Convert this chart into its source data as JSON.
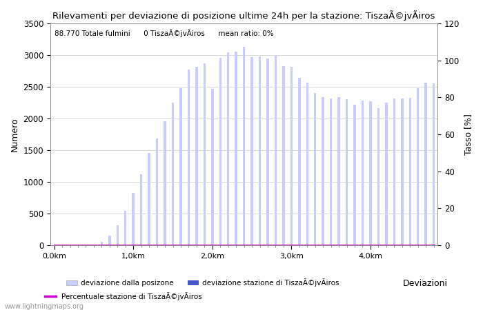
{
  "title": "Rilevamenti per deviazione di posizione ultime 24h per la stazione: TiszaÃ©jvÃiros",
  "xlabel": "Deviazioni",
  "ylabel_left": "Numero",
  "ylabel_right": "Tasso [%]",
  "info_text": "88.770 Totale fulmini      0 TiszaÃ©jvÃiros      mean ratio: 0%",
  "xtick_labels": [
    "0,0km",
    "1,0km",
    "2,0km",
    "3,0km",
    "4,0km"
  ],
  "xtick_positions": [
    0,
    10,
    20,
    30,
    40
  ],
  "ylim_left": [
    0,
    3500
  ],
  "ylim_right": [
    0,
    120
  ],
  "yticks_left": [
    0,
    500,
    1000,
    1500,
    2000,
    2500,
    3000,
    3500
  ],
  "yticks_right": [
    0,
    20,
    40,
    60,
    80,
    100,
    120
  ],
  "bar_color_light": "#c8ccff",
  "bar_color_dark": "#4455cc",
  "line_color": "#cc00cc",
  "background_color": "#ffffff",
  "grid_color": "#cccccc",
  "watermark": "www.lightningmaps.org",
  "legend_label1": "deviazione dalla posizone",
  "legend_label2": "deviazione stazione di TiszaÃ©jvÃiros",
  "legend_label3": "Percentuale stazione di TiszaÃ©jvÃiros",
  "bar_values": [
    0,
    0,
    0,
    0,
    0,
    0,
    50,
    150,
    320,
    540,
    830,
    1120,
    1460,
    1690,
    1960,
    2250,
    2480,
    2770,
    2810,
    2870,
    2470,
    2960,
    3040,
    3050,
    3130,
    2970,
    2980,
    2950,
    2990,
    2830,
    2810,
    2640,
    2560,
    2400,
    2340,
    2310,
    2340,
    2300,
    2220,
    2280,
    2270,
    2160,
    2250,
    2310,
    2320,
    2330,
    2480,
    2560,
    2550
  ],
  "bar_values2": [
    0,
    0,
    0,
    0,
    0,
    0,
    0,
    0,
    0,
    0,
    0,
    0,
    0,
    0,
    0,
    0,
    0,
    0,
    0,
    0,
    0,
    0,
    0,
    0,
    0,
    0,
    0,
    0,
    0,
    0,
    0,
    0,
    0,
    0,
    0,
    0,
    0,
    0,
    0,
    0,
    0,
    0,
    0,
    0,
    0,
    0,
    0,
    0,
    0
  ],
  "ratio_values": [
    0,
    0,
    0,
    0,
    0,
    0,
    0,
    0,
    0,
    0,
    0,
    0,
    0,
    0,
    0,
    0,
    0,
    0,
    0,
    0,
    0,
    0,
    0,
    0,
    0,
    0,
    0,
    0,
    0,
    0,
    0,
    0,
    0,
    0,
    0,
    0,
    0,
    0,
    0,
    0,
    0,
    0,
    0,
    0,
    0,
    0,
    0,
    0,
    0
  ],
  "bar_width": 0.3,
  "figsize": [
    7.0,
    4.5
  ],
  "dpi": 100
}
